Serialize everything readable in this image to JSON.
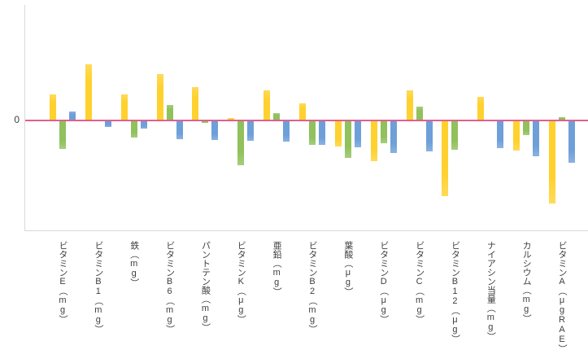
{
  "chart_data": {
    "type": "bar",
    "title": "",
    "xlabel": "",
    "ylabel": "",
    "y_zero_label": "0",
    "axis_note": "only the zero gridline is labeled; value scale unlabeled, bar values estimated in pixels from the zero baseline",
    "ylim": [
      -135,
      145
    ],
    "grid": false,
    "legend": "none",
    "categories": [
      "ビタミンE（mg）",
      "ビタミンB1（mg）",
      "鉄（mg）",
      "ビタミンB6（mg）",
      "パントテン酸（mg）",
      "ビタミンK（μg）",
      "亜鉛（mg）",
      "ビタミンB2（mg）",
      "葉酸（μg）",
      "ビタミンD（μg）",
      "ビタミンC（mg）",
      "ビタミンB12（μg）",
      "ナイアシン当量（mg）",
      "カルシウム（mg）",
      "ビタミンA（μgRAE）"
    ],
    "series": [
      {
        "name": "series-yellow",
        "color": "#ffd12e",
        "values": [
          32,
          69,
          32,
          57,
          41,
          3,
          37,
          21,
          -32,
          -50,
          37,
          -93,
          29,
          -37,
          -102
        ]
      },
      {
        "name": "series-green",
        "color": "#90c15c",
        "values": [
          -35,
          0,
          -21,
          19,
          -3,
          -55,
          9,
          -30,
          -46,
          -28,
          17,
          -36,
          0,
          -18,
          4
        ]
      },
      {
        "name": "series-blue",
        "color": "#6e9fd9",
        "values": [
          11,
          -8,
          -10,
          -23,
          -24,
          -25,
          -26,
          -30,
          -33,
          -40,
          -38,
          0,
          -34,
          -44,
          -52
        ]
      }
    ]
  },
  "colors": {
    "zero_line": "#e0608e",
    "axis_line": "#d9d9d9",
    "tick_text": "#404040",
    "label_text": "#3f3f3f",
    "background": "#ffffff"
  }
}
